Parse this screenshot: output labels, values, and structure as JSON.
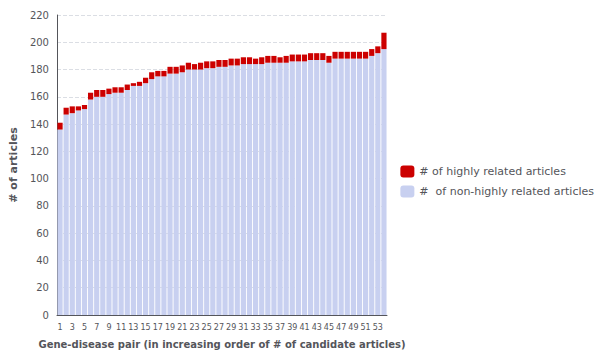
{
  "chart_data": {
    "type": "bar",
    "stacked": true,
    "xlabel": "Gene-disease pair (in increasing order of # of candidate articles)",
    "ylabel": "# of articles",
    "categories": [
      "1",
      null,
      "3",
      null,
      "5",
      null,
      "7",
      null,
      "9",
      null,
      "11",
      null,
      "13",
      null,
      "15",
      null,
      "17",
      null,
      "19",
      null,
      "21",
      null,
      "23",
      null,
      "25",
      null,
      "27",
      null,
      "29",
      null,
      "31",
      null,
      "33",
      null,
      "35",
      null,
      "37",
      null,
      "39",
      null,
      "41",
      null,
      "43",
      null,
      "45",
      null,
      "47",
      null,
      "49",
      null,
      "51",
      null,
      "53",
      null
    ],
    "series": [
      {
        "name": "#  of non-highly related articles",
        "color": "#c8d0f0",
        "values": [
          136,
          147,
          148,
          150,
          151,
          158,
          160,
          160,
          162,
          163,
          163,
          165,
          168,
          168,
          170,
          173,
          175,
          175,
          177,
          177,
          178,
          180,
          180,
          180,
          181,
          181,
          182,
          182,
          183,
          183,
          184,
          184,
          184,
          184,
          185,
          185,
          185,
          185,
          186,
          186,
          186,
          187,
          187,
          187,
          185,
          188,
          188,
          188,
          188,
          188,
          188,
          190,
          192,
          195
        ]
      },
      {
        "name": "# of highly related articles",
        "color": "#cc0000",
        "values": [
          5,
          5,
          5,
          3,
          3,
          5,
          5,
          5,
          4,
          4,
          4,
          4,
          2,
          3,
          4,
          5,
          4,
          4,
          5,
          5,
          5,
          5,
          4,
          5,
          5,
          5,
          5,
          5,
          5,
          5,
          5,
          5,
          4,
          5,
          5,
          5,
          4,
          5,
          5,
          5,
          5,
          5,
          5,
          5,
          5,
          5,
          5,
          5,
          5,
          5,
          5,
          5,
          5,
          12
        ]
      }
    ],
    "ylim": [
      0,
      220
    ],
    "yticks": [
      0,
      20,
      40,
      60,
      80,
      100,
      120,
      140,
      160,
      180,
      200,
      220
    ],
    "grid": true,
    "legend": "right"
  }
}
